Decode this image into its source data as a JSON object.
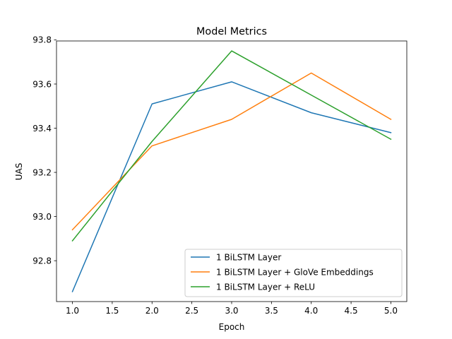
{
  "chart_data": {
    "type": "line",
    "title": "Model Metrics",
    "xlabel": "Epoch",
    "ylabel": "UAS",
    "xlim": [
      0.8,
      5.2
    ],
    "ylim": [
      92.615,
      93.795
    ],
    "x": [
      1,
      2,
      3,
      4,
      5
    ],
    "xticks": [
      1.0,
      1.5,
      2.0,
      2.5,
      3.0,
      3.5,
      4.0,
      4.5,
      5.0
    ],
    "xtick_labels": [
      "1.0",
      "1.5",
      "2.0",
      "2.5",
      "3.0",
      "3.5",
      "4.0",
      "4.5",
      "5.0"
    ],
    "yticks": [
      92.8,
      93.0,
      93.2,
      93.4,
      93.6,
      93.8
    ],
    "ytick_labels": [
      "92.8",
      "93.0",
      "93.2",
      "93.4",
      "93.6",
      "93.8"
    ],
    "grid": false,
    "legend_position": "lower-right",
    "series": [
      {
        "name": "1 BiLSTM Layer",
        "color": "#1f77b4",
        "values": [
          92.66,
          93.51,
          93.61,
          93.47,
          93.38
        ]
      },
      {
        "name": "1 BiLSTM Layer + GloVe Embeddings",
        "color": "#ff7f0e",
        "values": [
          92.94,
          93.32,
          93.44,
          93.65,
          93.44
        ]
      },
      {
        "name": "1 BiLSTM Layer + ReLU",
        "color": "#2ca02c",
        "values": [
          92.89,
          93.34,
          93.75,
          93.55,
          93.35
        ]
      }
    ]
  }
}
